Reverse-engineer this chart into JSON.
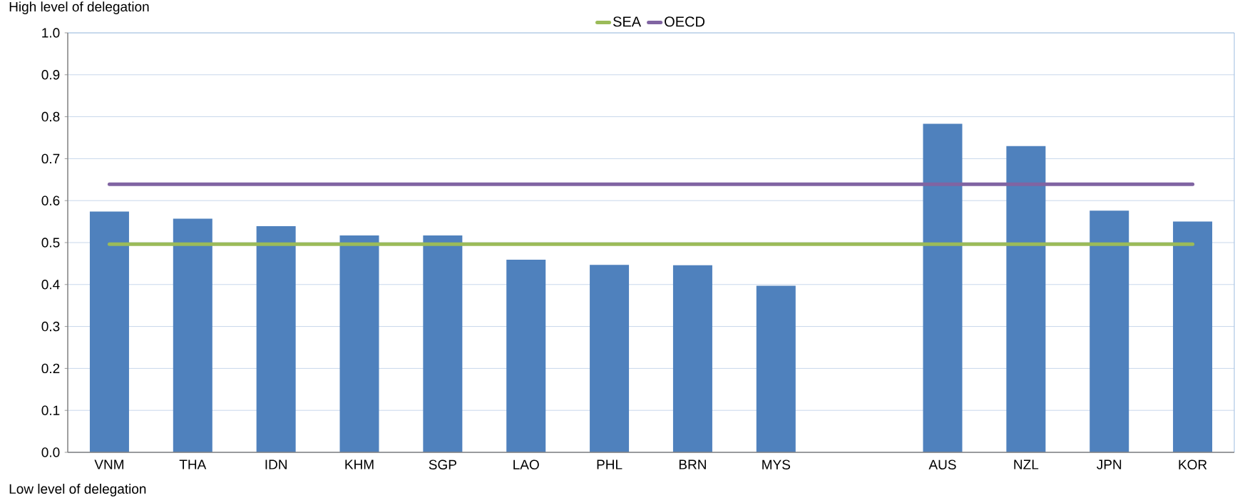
{
  "chart_data": {
    "type": "bar",
    "categories": [
      "VNM",
      "THA",
      "IDN",
      "KHM",
      "SGP",
      "LAO",
      "PHL",
      "BRN",
      "MYS",
      null,
      "AUS",
      "NZL",
      "JPN",
      "KOR"
    ],
    "series": [
      {
        "color": "#4f81bd",
        "values": [
          0.574,
          0.557,
          0.539,
          0.517,
          0.517,
          0.459,
          0.447,
          0.446,
          0.397,
          null,
          0.783,
          0.73,
          0.576,
          0.55
        ]
      },
      {
        "name": "SEA",
        "type": "line",
        "color": "#9bbb59",
        "values": [
          0.496,
          0.496,
          0.496,
          0.496,
          0.496,
          0.496,
          0.496,
          0.496,
          0.496,
          0.496,
          0.496,
          0.496,
          0.496,
          0.496
        ]
      },
      {
        "name": "OECD",
        "type": "line",
        "color": "#8064a2",
        "values": [
          0.639,
          0.639,
          0.639,
          0.639,
          0.639,
          0.639,
          0.639,
          0.639,
          0.639,
          0.639,
          0.639,
          0.639,
          0.639,
          0.639
        ]
      }
    ],
    "ylim": [
      0,
      1
    ],
    "yticks": [
      {
        "value": 0,
        "label": "0.0"
      },
      0.1,
      0.2,
      0.3,
      0.4,
      0.5,
      0.6,
      0.7,
      0.8,
      0.9,
      {
        "value": 1,
        "label": "1.0"
      }
    ],
    "grid": "y",
    "legend": "top",
    "annotations": [
      "High level of delegation",
      "Low level of delegation"
    ]
  }
}
